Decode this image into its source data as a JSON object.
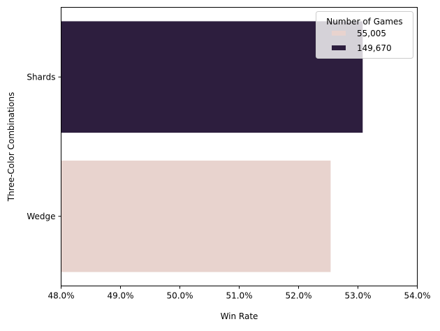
{
  "chart_data": {
    "type": "bar",
    "orientation": "horizontal",
    "title": "",
    "xlabel": "Win Rate",
    "ylabel": "Three-Color Combinations",
    "xlim": [
      0.48,
      0.54
    ],
    "x_ticks": [
      0.48,
      0.49,
      0.5,
      0.51,
      0.52,
      0.53,
      0.54
    ],
    "x_tick_labels": [
      "48.0%",
      "49.0%",
      "50.0%",
      "51.0%",
      "52.0%",
      "53.0%",
      "54.0%"
    ],
    "categories": [
      "Shards",
      "Wedge"
    ],
    "values": [
      0.5308,
      0.5254
    ],
    "bar_colors": [
      "#2d1e3e",
      "#e8d3ce"
    ],
    "grid": false,
    "legend": {
      "title": "Number of Games",
      "placement": "top-right",
      "entries": [
        {
          "label": "55,005",
          "color": "#e8d3ce"
        },
        {
          "label": "149,670",
          "color": "#2d1e3e"
        }
      ]
    }
  }
}
